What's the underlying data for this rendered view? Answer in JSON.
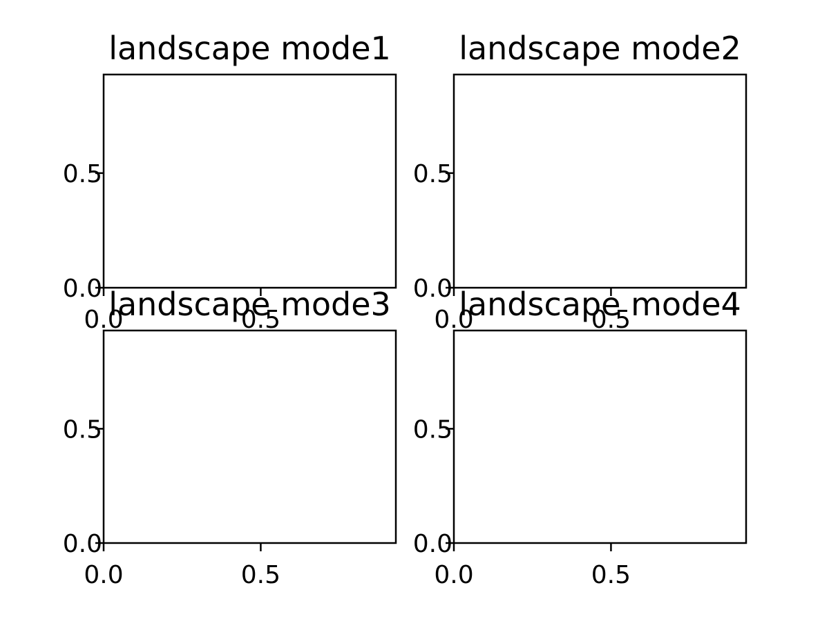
{
  "chart_data": [
    {
      "type": "scatter",
      "title": "landscape mode1",
      "xlim": [
        0,
        0.93
      ],
      "ylim": [
        0,
        0.93
      ],
      "xticks": [
        {
          "value": 0.0,
          "label": "0.0"
        },
        {
          "value": 0.5,
          "label": "0.5"
        }
      ],
      "yticks": [
        {
          "value": 0.0,
          "label": "0.0"
        },
        {
          "value": 0.5,
          "label": "0.5"
        }
      ],
      "series": [],
      "grid": false
    },
    {
      "type": "scatter",
      "title": "landscape mode2",
      "xlim": [
        0,
        0.93
      ],
      "ylim": [
        0,
        0.93
      ],
      "xticks": [
        {
          "value": 0.0,
          "label": "0.0"
        },
        {
          "value": 0.5,
          "label": "0.5"
        }
      ],
      "yticks": [
        {
          "value": 0.0,
          "label": "0.0"
        },
        {
          "value": 0.5,
          "label": "0.5"
        }
      ],
      "series": [],
      "grid": false
    },
    {
      "type": "scatter",
      "title": "landscape mode3",
      "xlim": [
        0,
        0.93
      ],
      "ylim": [
        0,
        0.93
      ],
      "xticks": [
        {
          "value": 0.0,
          "label": "0.0"
        },
        {
          "value": 0.5,
          "label": "0.5"
        }
      ],
      "yticks": [
        {
          "value": 0.0,
          "label": "0.0"
        },
        {
          "value": 0.5,
          "label": "0.5"
        }
      ],
      "series": [],
      "grid": false
    },
    {
      "type": "scatter",
      "title": "landscape mode4",
      "xlim": [
        0,
        0.93
      ],
      "ylim": [
        0,
        0.93
      ],
      "xticks": [
        {
          "value": 0.0,
          "label": "0.0"
        },
        {
          "value": 0.5,
          "label": "0.5"
        }
      ],
      "yticks": [
        {
          "value": 0.0,
          "label": "0.0"
        },
        {
          "value": 0.5,
          "label": "0.5"
        }
      ],
      "series": [],
      "grid": false
    }
  ]
}
